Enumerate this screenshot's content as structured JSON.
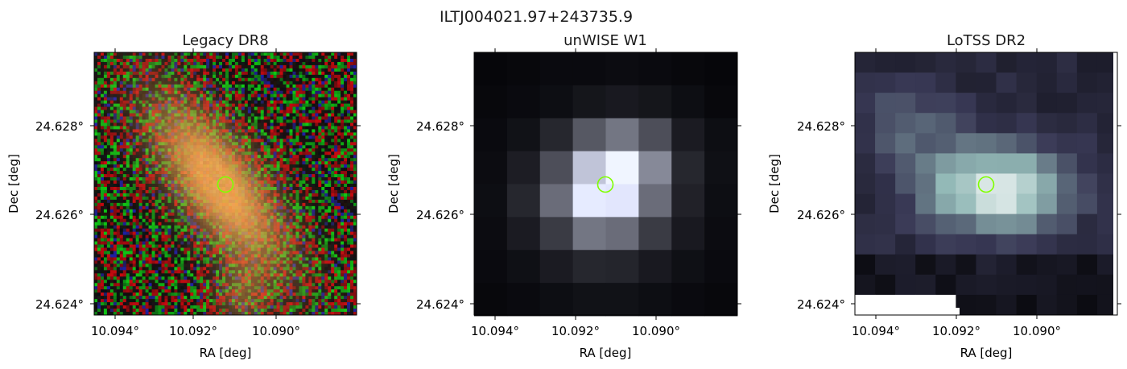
{
  "figure": {
    "suptitle": "ILTJ004021.97+243735.9"
  },
  "panels": [
    {
      "title": "Legacy DR8",
      "xlabel": "RA [deg]",
      "ylabel": "Dec [deg]",
      "xticks": [
        "10.094°",
        "10.092°",
        "10.090°"
      ],
      "yticks": [
        "24.628°",
        "24.626°",
        "24.624°"
      ],
      "image": "optical color cutout: elongated orange galaxy on noisy red/green background",
      "marker_color": "#7fff00"
    },
    {
      "title": "unWISE W1",
      "xlabel": "RA [deg]",
      "ylabel": "Dec [deg]",
      "xticks": [
        "10.094°",
        "10.092°",
        "10.090°"
      ],
      "yticks": [
        "24.628°",
        "24.626°",
        "24.624°"
      ],
      "image": "coarse grayscale infrared cutout with bright central source",
      "marker_color": "#7fff00"
    },
    {
      "title": "LoTSS DR2",
      "xlabel": "RA [deg]",
      "ylabel": "Dec [deg]",
      "xticks": [
        "10.094°",
        "10.092°",
        "10.090°"
      ],
      "yticks": [
        "24.628°",
        "24.626°",
        "24.624°"
      ],
      "image": "bone-colormap radio cutout with bright central emission",
      "marker_color": "#7fff00"
    }
  ]
}
